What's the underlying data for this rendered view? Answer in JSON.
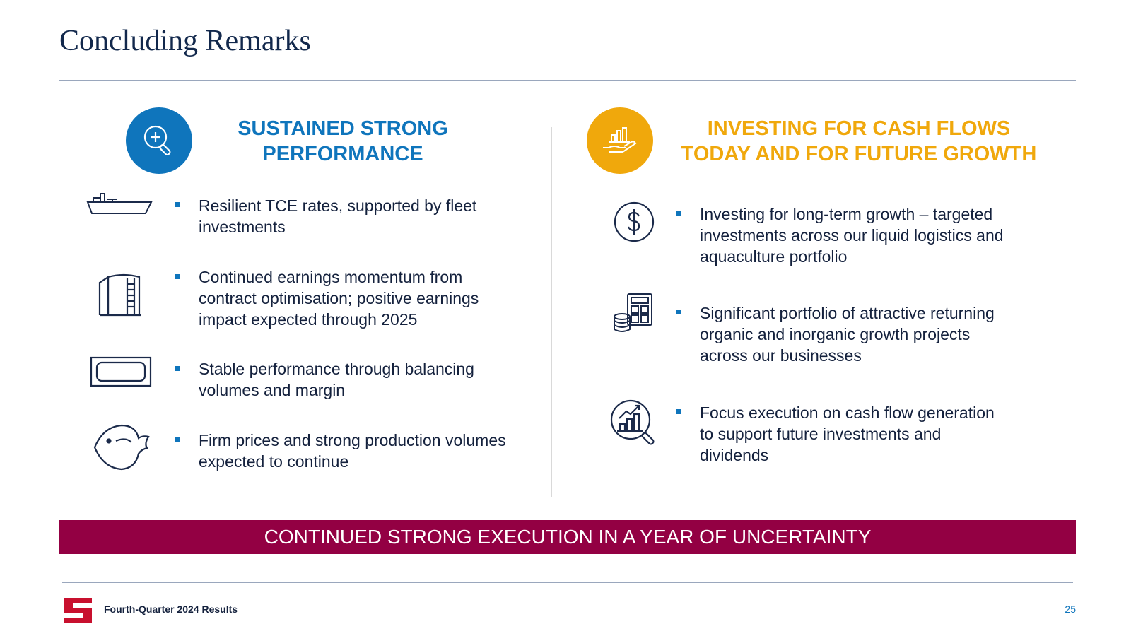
{
  "slide": {
    "title": "Concluding Remarks",
    "banner": "CONTINUED STRONG EXECUTION IN A YEAR OF UNCERTAINTY",
    "footer_text": "Fourth-Quarter 2024 Results",
    "page_number": "25"
  },
  "left_column": {
    "heading_line1": "SUSTAINED STRONG",
    "heading_line2": "PERFORMANCE",
    "badge_icon": "magnifier-plus-icon",
    "accent_color": "#0f75bc",
    "items": [
      {
        "icon": "ship-icon",
        "lines": [
          "Resilient TCE rates, supported by fleet",
          "investments"
        ]
      },
      {
        "icon": "storage-tank-icon",
        "lines": [
          "Continued earnings momentum from",
          "contract optimisation; positive earnings",
          "impact expected through 2025"
        ]
      },
      {
        "icon": "tank-container-icon",
        "lines": [
          "Stable performance through balancing",
          "volumes and margin"
        ]
      },
      {
        "icon": "fish-icon",
        "lines": [
          "Firm prices and strong production volumes",
          "expected to continue"
        ]
      }
    ]
  },
  "right_column": {
    "heading_line1": "INVESTING FOR CASH FLOWS",
    "heading_line2": "TODAY AND FOR FUTURE GROWTH",
    "badge_icon": "hand-chart-icon",
    "accent_color": "#f0a80c",
    "items": [
      {
        "icon": "dollar-coin-icon",
        "lines": [
          "Investing for long-term growth – targeted",
          "investments across our liquid logistics and",
          "aquaculture portfolio"
        ]
      },
      {
        "icon": "calculator-coins-icon",
        "lines": [
          "Significant portfolio of attractive returning",
          "organic and inorganic growth projects",
          "across our businesses"
        ]
      },
      {
        "icon": "growth-analysis-icon",
        "lines": [
          "Focus execution on cash flow generation",
          "to support future investments and",
          "dividends"
        ]
      }
    ]
  },
  "banner_color": "#930043",
  "title_color": "#12284c"
}
